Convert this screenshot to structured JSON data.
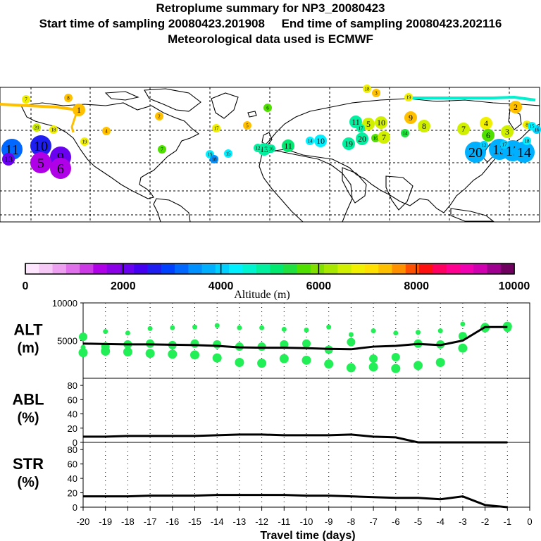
{
  "header": {
    "title": "Retroplume summary for NP3_20080423",
    "sampling": "Start time of sampling 20080423.201908     End time of sampling 20080423.202116",
    "met": "Meteorological data used is ECMWF"
  },
  "colorbar": {
    "ticks": [
      "0",
      "2000",
      "4000",
      "6000",
      "8000",
      "10000"
    ],
    "label": "Altitude (m)",
    "colors": [
      "#fde6fd",
      "#f6c8f6",
      "#eea0f0",
      "#e070ec",
      "#cc3ae6",
      "#b000e8",
      "#8c00e8",
      "#6a00f0",
      "#4400f0",
      "#1e1ef0",
      "#0040ff",
      "#0068ff",
      "#0090ff",
      "#00b0ff",
      "#00d0ff",
      "#00f0ff",
      "#00f4d0",
      "#00f0a0",
      "#00e870",
      "#20e040",
      "#50e000",
      "#80e000",
      "#a8e800",
      "#d0f000",
      "#f0f000",
      "#ffe000",
      "#ffc000",
      "#ff9000",
      "#ff5000",
      "#ff1010",
      "#ff0060",
      "#ff0090",
      "#f000b0",
      "#d000b0",
      "#a00090",
      "#700060"
    ]
  },
  "map_labels": [
    {
      "t": "1",
      "c": "#ffc000",
      "s": "m"
    },
    {
      "t": "11",
      "c": "#0068ff",
      "s": "l"
    },
    {
      "t": "10",
      "c": "#1e1ef0",
      "s": "l"
    },
    {
      "t": "9",
      "c": "#6a00f0",
      "s": "l"
    },
    {
      "t": "13",
      "c": "#6a00f0",
      "s": "m"
    },
    {
      "t": "5",
      "c": "#b000e8",
      "s": "l"
    },
    {
      "t": "6",
      "c": "#b000e8",
      "s": "l"
    },
    {
      "t": "20",
      "c": "#d0f000",
      "s": "s"
    },
    {
      "t": "18",
      "c": "#f0f000",
      "s": "s"
    },
    {
      "t": "19",
      "c": "#f0f000",
      "s": "s"
    },
    {
      "t": "11",
      "c": "#00f0a0",
      "s": "m"
    },
    {
      "t": "5",
      "c": "#d0f000",
      "s": "m"
    },
    {
      "t": "10",
      "c": "#d0f000",
      "s": "m"
    },
    {
      "t": "9",
      "c": "#ffc000",
      "s": "m"
    },
    {
      "t": "8",
      "c": "#d0f000",
      "s": "m"
    },
    {
      "t": "19",
      "c": "#00f0a0",
      "s": "m"
    },
    {
      "t": "20",
      "c": "#00f0a0",
      "s": "m"
    },
    {
      "t": "16",
      "c": "#50e000",
      "s": "s"
    },
    {
      "t": "7",
      "c": "#d0f000",
      "s": "m"
    },
    {
      "t": "14",
      "c": "#20e040",
      "s": "s"
    },
    {
      "t": "13",
      "c": "#00f0a0",
      "s": "m"
    },
    {
      "t": "11",
      "c": "#00e870",
      "s": "m"
    },
    {
      "t": "10",
      "c": "#00f0ff",
      "s": "m"
    },
    {
      "t": "14",
      "c": "#00f0ff",
      "s": "s"
    },
    {
      "t": "2",
      "c": "#ffc000",
      "s": "m"
    },
    {
      "t": "7",
      "c": "#d0f000",
      "s": "m"
    },
    {
      "t": "4",
      "c": "#f0f000",
      "s": "m"
    },
    {
      "t": "6",
      "c": "#50e000",
      "s": "m"
    },
    {
      "t": "3",
      "c": "#d0f000",
      "s": "m"
    },
    {
      "t": "8",
      "c": "#f0f000",
      "s": "s"
    },
    {
      "t": "20",
      "c": "#00b0ff",
      "s": "l"
    },
    {
      "t": "13",
      "c": "#00b0ff",
      "s": "l"
    },
    {
      "t": "15",
      "c": "#00b0ff",
      "s": "l"
    },
    {
      "t": "14",
      "c": "#00b0ff",
      "s": "l"
    },
    {
      "t": "12",
      "c": "#00d0ff",
      "s": "s"
    },
    {
      "t": "17",
      "c": "#00d0ff",
      "s": "s"
    },
    {
      "t": "16",
      "c": "#00d0ff",
      "s": "s"
    },
    {
      "t": "15",
      "c": "#00f0ff",
      "s": "s"
    },
    {
      "t": "18",
      "c": "#00f0ff",
      "s": "s"
    },
    {
      "t": "7",
      "c": "#f0f000",
      "s": "s"
    },
    {
      "t": "8",
      "c": "#ffc000",
      "s": "s"
    },
    {
      "t": "6",
      "c": "#50e000",
      "s": "s"
    },
    {
      "t": "3",
      "c": "#ffc000",
      "s": "s"
    },
    {
      "t": "19",
      "c": "#f0f000",
      "s": "s"
    },
    {
      "t": "4",
      "c": "#ffc000",
      "s": "s"
    },
    {
      "t": "7",
      "c": "#50e000",
      "s": "s"
    },
    {
      "t": "2",
      "c": "#ffc000",
      "s": "s"
    },
    {
      "t": "5",
      "c": "#ffc000",
      "s": "s"
    },
    {
      "t": "17",
      "c": "#f0f000",
      "s": "s"
    },
    {
      "t": "18",
      "c": "#f0f000",
      "s": "s"
    },
    {
      "t": "17",
      "c": "#00f0a0",
      "s": "s"
    },
    {
      "t": "12",
      "c": "#00f0a0",
      "s": "s"
    },
    {
      "t": "16",
      "c": "#00f0a0",
      "s": "s"
    },
    {
      "t": "19",
      "c": "#00f0ff",
      "s": "s"
    },
    {
      "t": "15",
      "c": "#00f0ff",
      "s": "s"
    },
    {
      "t": "18",
      "c": "#0090ff",
      "s": "s"
    }
  ],
  "chart_data": {
    "type": "line",
    "xlabel": "Travel time (days)",
    "x_ticks": [
      -20,
      -19,
      -18,
      -17,
      -16,
      -15,
      -14,
      -13,
      -12,
      -11,
      -10,
      -9,
      -8,
      -7,
      -6,
      -5,
      -4,
      -3,
      -2,
      -1,
      0
    ],
    "xlim": [
      -20,
      0
    ],
    "line_color": "#000000",
    "marker_color": "#22ee55",
    "panels": [
      {
        "label": "ALT",
        "unit": "(m)",
        "ylim": [
          0,
          10000
        ],
        "y_ticks": [
          5000,
          10000
        ],
        "x": [
          -20,
          -19,
          -18,
          -17,
          -16,
          -15,
          -14,
          -13,
          -12,
          -11,
          -10,
          -9,
          -8,
          -7,
          -6,
          -5,
          -4,
          -3,
          -2,
          -1
        ],
        "mean": [
          4600,
          4550,
          4500,
          4500,
          4450,
          4400,
          4300,
          4100,
          4050,
          4050,
          4000,
          3900,
          3850,
          4200,
          4300,
          4550,
          4400,
          5000,
          6800,
          6800
        ],
        "clusters": [
          [
            4100,
            5500,
            3400
          ],
          [
            6200,
            4200,
            3600
          ],
          [
            6000,
            4500,
            3500
          ],
          [
            6600,
            4600,
            3300
          ],
          [
            6700,
            4400,
            3200
          ],
          [
            6800,
            4600,
            3100
          ],
          [
            7000,
            4500,
            2700
          ],
          [
            6700,
            4200,
            2100
          ],
          [
            6700,
            4200,
            2000
          ],
          [
            6500,
            4500,
            2600
          ],
          [
            6400,
            4600,
            2400
          ],
          [
            6800,
            3800,
            1900
          ],
          [
            5800,
            4800,
            1400
          ],
          [
            6300,
            2600,
            1500
          ],
          [
            6000,
            2800,
            1300
          ],
          [
            6100,
            4600,
            1700
          ],
          [
            6300,
            4500,
            2100
          ],
          [
            7200,
            5600,
            4000
          ],
          [
            6900,
            6800,
            6700
          ],
          [
            6800,
            6700,
            6900
          ]
        ]
      },
      {
        "label": "ABL",
        "unit": "(%)",
        "ylim": [
          0,
          90
        ],
        "y_ticks": [
          0,
          20,
          40,
          60,
          80
        ],
        "x": [
          -20,
          -19,
          -18,
          -17,
          -16,
          -15,
          -14,
          -13,
          -12,
          -11,
          -10,
          -9,
          -8,
          -7,
          -6,
          -5,
          -4,
          -3,
          -2,
          -1
        ],
        "values": [
          8,
          8,
          9,
          9,
          9,
          9,
          10,
          11,
          11,
          10,
          10,
          10,
          11,
          8,
          7,
          0,
          0,
          0,
          0,
          0
        ]
      },
      {
        "label": "STR",
        "unit": "(%)",
        "ylim": [
          0,
          90
        ],
        "y_ticks": [
          0,
          20,
          40,
          60,
          80
        ],
        "x": [
          -20,
          -19,
          -18,
          -17,
          -16,
          -15,
          -14,
          -13,
          -12,
          -11,
          -10,
          -9,
          -8,
          -7,
          -6,
          -5,
          -4,
          -3,
          -2,
          -1
        ],
        "values": [
          15,
          15,
          15,
          16,
          16,
          16,
          17,
          17,
          17,
          17,
          16,
          16,
          15,
          14,
          13,
          13,
          11,
          15,
          3,
          0
        ]
      }
    ]
  }
}
